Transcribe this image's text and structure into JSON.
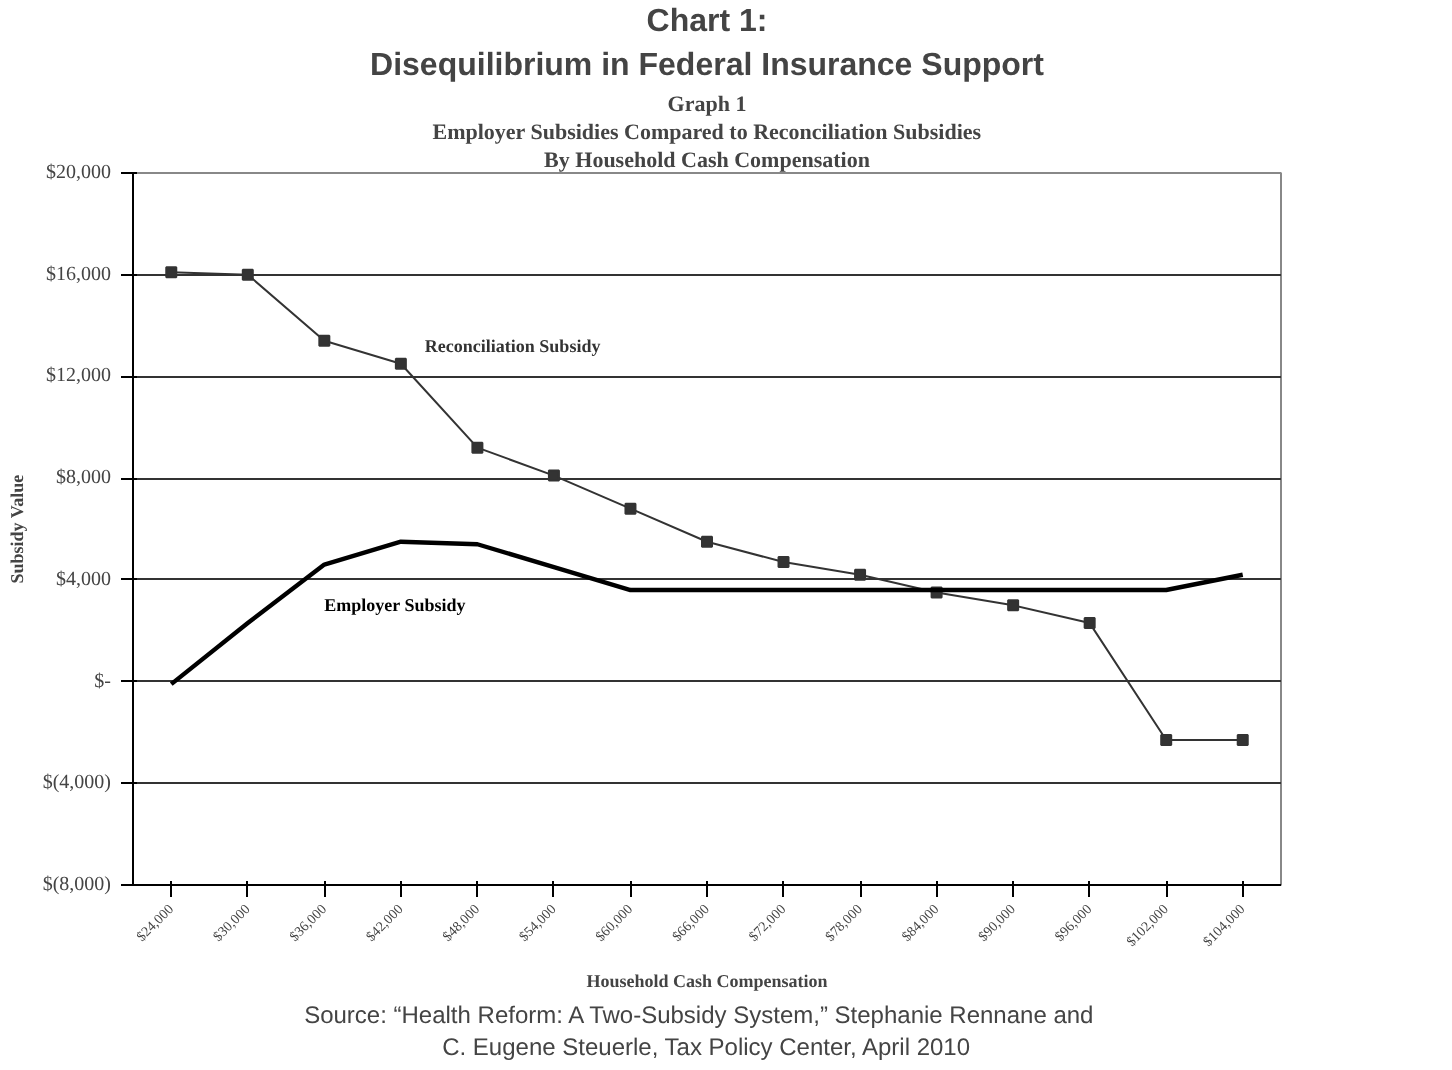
{
  "chart_data": {
    "type": "line",
    "title": "Chart 1:",
    "subtitle": "Disequilibrium in Federal Insurance Support",
    "annotations": [
      "Graph 1",
      "Employer Subsidies Compared to Reconciliation Subsidies",
      "By Household Cash Compensation",
      "Source:  “Health Reform:  A Two-Subsidy System,” Stephanie Rennane and",
      "C. Eugene Steuerle, Tax Policy Center, April 2010"
    ],
    "xlabel": "Household Cash Compensation",
    "ylabel": "Subsidy Value",
    "categories": [
      "$24,000",
      "$30,000",
      "$36,000",
      "$42,000",
      "$48,000",
      "$54,000",
      "$60,000",
      "$66,000",
      "$72,000",
      "$78,000",
      "$84,000",
      "$90,000",
      "$96,000",
      "$102,000",
      "$104,000"
    ],
    "series": [
      {
        "name": "Reconciliation Subsidy",
        "color": "#333333",
        "marker": "square",
        "values": [
          16100,
          16000,
          13400,
          12500,
          9200,
          8100,
          6800,
          5500,
          4700,
          4200,
          3500,
          3000,
          2300,
          -2300,
          -2300
        ]
      },
      {
        "name": "Employer Subsidy",
        "color": "#000000",
        "marker": "none",
        "values": [
          -100,
          2300,
          4600,
          5500,
          5400,
          4500,
          3600,
          3600,
          3600,
          3600,
          3600,
          3600,
          3600,
          3600,
          4200
        ]
      }
    ],
    "ylim": [
      -8000,
      20000
    ],
    "yticks": [
      {
        "value": -8000,
        "label": "$(8,000)"
      },
      {
        "value": -4000,
        "label": "$(4,000)"
      },
      {
        "value": 0,
        "label": "$-"
      },
      {
        "value": 4000,
        "label": "$4,000"
      },
      {
        "value": 8000,
        "label": "$8,000"
      },
      {
        "value": 12000,
        "label": "$12,000"
      },
      {
        "value": 16000,
        "label": "$16,000"
      },
      {
        "value": 20000,
        "label": "$20,000"
      }
    ],
    "grid": "y"
  }
}
